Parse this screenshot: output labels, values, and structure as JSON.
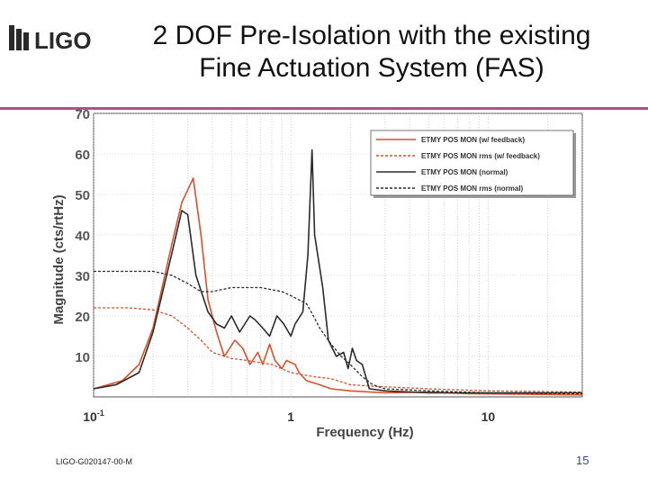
{
  "logo": {
    "text": "LIGO",
    "color": "#2a2a2a"
  },
  "slide": {
    "title_line1": "2 DOF Pre-Isolation with the existing",
    "title_line2": "Fine Actuation System (FAS)",
    "footer_id": "LIGO-G020147-00-M",
    "page_number": "15",
    "rule_color": "#b0508a"
  },
  "chart_data": {
    "type": "line",
    "xlabel": "Frequency (Hz)",
    "ylabel": "Magnitude (cts/rtHz)",
    "x_scale": "log",
    "xlim": [
      0.1,
      30
    ],
    "ylim": [
      0,
      70
    ],
    "x_ticks": [
      {
        "value": 0.1,
        "base": "10",
        "exp": "-1"
      },
      {
        "value": 1,
        "base": "1",
        "exp": ""
      },
      {
        "value": 10,
        "base": "10",
        "exp": ""
      }
    ],
    "y_ticks": [
      10,
      20,
      30,
      40,
      50,
      60,
      70
    ],
    "grid": true,
    "legend_position": "top-right",
    "series": [
      {
        "name": "ETMY POS MON (w/ feedback)",
        "color": "#d9502c",
        "style": "solid",
        "points": [
          [
            0.1,
            2
          ],
          [
            0.14,
            4
          ],
          [
            0.17,
            8
          ],
          [
            0.2,
            17
          ],
          [
            0.25,
            38
          ],
          [
            0.28,
            48
          ],
          [
            0.32,
            54
          ],
          [
            0.35,
            40
          ],
          [
            0.38,
            24
          ],
          [
            0.42,
            16
          ],
          [
            0.46,
            10
          ],
          [
            0.52,
            14
          ],
          [
            0.57,
            12
          ],
          [
            0.62,
            8
          ],
          [
            0.68,
            11
          ],
          [
            0.72,
            8
          ],
          [
            0.78,
            13
          ],
          [
            0.83,
            9
          ],
          [
            0.9,
            7
          ],
          [
            0.95,
            9
          ],
          [
            1.05,
            8
          ],
          [
            1.1,
            6
          ],
          [
            1.2,
            4
          ],
          [
            1.4,
            3
          ],
          [
            1.6,
            2
          ],
          [
            2.0,
            1.5
          ],
          [
            3,
            1
          ],
          [
            5,
            1.2
          ],
          [
            8,
            0.8
          ],
          [
            15,
            0.7
          ],
          [
            30,
            0.5
          ]
        ]
      },
      {
        "name": "ETMY POS MON rms (w/ feedback)",
        "color": "#d9502c",
        "style": "dashed",
        "points": [
          [
            0.1,
            22
          ],
          [
            0.15,
            22
          ],
          [
            0.2,
            21.5
          ],
          [
            0.25,
            20
          ],
          [
            0.3,
            17
          ],
          [
            0.35,
            14
          ],
          [
            0.4,
            11
          ],
          [
            0.5,
            9.5
          ],
          [
            0.6,
            9
          ],
          [
            0.8,
            8
          ],
          [
            1.0,
            6
          ],
          [
            1.3,
            5
          ],
          [
            1.6,
            4.5
          ],
          [
            2.0,
            3
          ],
          [
            3,
            2.5
          ],
          [
            5,
            2
          ],
          [
            10,
            1.5
          ],
          [
            30,
            1.2
          ]
        ]
      },
      {
        "name": "ETMY POS MON (normal)",
        "color": "#2b2b2b",
        "style": "solid",
        "points": [
          [
            0.1,
            2
          ],
          [
            0.13,
            3
          ],
          [
            0.17,
            6
          ],
          [
            0.2,
            16
          ],
          [
            0.24,
            32
          ],
          [
            0.28,
            46
          ],
          [
            0.3,
            45
          ],
          [
            0.33,
            30
          ],
          [
            0.38,
            21
          ],
          [
            0.42,
            18
          ],
          [
            0.46,
            17
          ],
          [
            0.5,
            20
          ],
          [
            0.55,
            16
          ],
          [
            0.62,
            20
          ],
          [
            0.66,
            19
          ],
          [
            0.72,
            17
          ],
          [
            0.78,
            15
          ],
          [
            0.85,
            20
          ],
          [
            0.92,
            18
          ],
          [
            1.0,
            15
          ],
          [
            1.05,
            18
          ],
          [
            1.15,
            21
          ],
          [
            1.22,
            35
          ],
          [
            1.28,
            61
          ],
          [
            1.32,
            40
          ],
          [
            1.45,
            27
          ],
          [
            1.55,
            14
          ],
          [
            1.7,
            10
          ],
          [
            1.85,
            11
          ],
          [
            1.95,
            7
          ],
          [
            2.05,
            12
          ],
          [
            2.15,
            9
          ],
          [
            2.3,
            8
          ],
          [
            2.5,
            2
          ],
          [
            3,
            1.5
          ],
          [
            5,
            1
          ],
          [
            10,
            1
          ],
          [
            30,
            1
          ]
        ]
      },
      {
        "name": "ETMY POS MON rms (normal)",
        "color": "#2b2b2b",
        "style": "dashed",
        "points": [
          [
            0.1,
            31
          ],
          [
            0.2,
            31
          ],
          [
            0.25,
            30
          ],
          [
            0.3,
            28
          ],
          [
            0.35,
            26
          ],
          [
            0.4,
            26
          ],
          [
            0.5,
            27
          ],
          [
            0.7,
            27
          ],
          [
            0.9,
            26
          ],
          [
            1.0,
            25
          ],
          [
            1.2,
            23
          ],
          [
            1.3,
            20
          ],
          [
            1.4,
            17
          ],
          [
            1.6,
            13
          ],
          [
            1.8,
            10
          ],
          [
            2.0,
            8
          ],
          [
            2.3,
            5
          ],
          [
            2.6,
            3
          ],
          [
            3,
            2
          ],
          [
            5,
            1.5
          ],
          [
            10,
            1
          ],
          [
            30,
            0.8
          ]
        ]
      }
    ]
  }
}
